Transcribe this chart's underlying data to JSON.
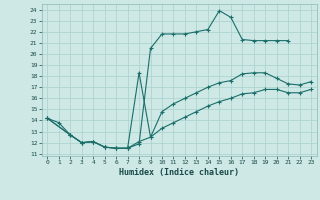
{
  "xlabel": "Humidex (Indice chaleur)",
  "bg_color": "#cde8e5",
  "grid_color": "#afd4d0",
  "line_color": "#1a6e6a",
  "xlim": [
    -0.5,
    23.5
  ],
  "ylim": [
    10.8,
    24.5
  ],
  "xticks": [
    0,
    1,
    2,
    3,
    4,
    5,
    6,
    7,
    8,
    9,
    10,
    11,
    12,
    13,
    14,
    15,
    16,
    17,
    18,
    19,
    20,
    21,
    22,
    23
  ],
  "yticks": [
    11,
    12,
    13,
    14,
    15,
    16,
    17,
    18,
    19,
    20,
    21,
    22,
    23,
    24
  ],
  "line1_x": [
    0,
    1,
    2,
    3,
    4,
    5,
    6,
    7,
    8,
    9,
    10,
    11,
    12,
    13,
    14,
    15,
    16,
    17,
    18,
    19,
    20,
    21
  ],
  "line1_y": [
    14.2,
    13.8,
    12.7,
    12.0,
    12.1,
    11.6,
    11.5,
    11.5,
    11.9,
    20.5,
    21.8,
    21.8,
    21.8,
    22.0,
    22.2,
    23.9,
    23.3,
    21.3,
    21.2,
    21.2,
    21.2,
    21.2
  ],
  "line2_x": [
    0,
    2,
    3,
    4,
    5,
    6,
    7,
    8,
    9,
    10,
    11,
    12,
    13,
    14,
    15,
    16,
    17,
    18,
    19,
    20,
    21,
    22,
    23
  ],
  "line2_y": [
    14.2,
    12.7,
    12.0,
    12.1,
    11.6,
    11.5,
    11.5,
    18.3,
    12.5,
    14.8,
    15.5,
    16.0,
    16.5,
    17.0,
    17.4,
    17.6,
    18.2,
    18.3,
    18.3,
    17.8,
    17.3,
    17.2,
    17.5
  ],
  "line3_x": [
    0,
    2,
    3,
    4,
    5,
    6,
    7,
    8,
    9,
    10,
    11,
    12,
    13,
    14,
    15,
    16,
    17,
    18,
    19,
    20,
    21,
    22,
    23
  ],
  "line3_y": [
    14.2,
    12.7,
    12.0,
    12.1,
    11.6,
    11.5,
    11.5,
    12.1,
    12.5,
    13.3,
    13.8,
    14.3,
    14.8,
    15.3,
    15.7,
    16.0,
    16.4,
    16.5,
    16.8,
    16.8,
    16.5,
    16.5,
    16.8
  ]
}
